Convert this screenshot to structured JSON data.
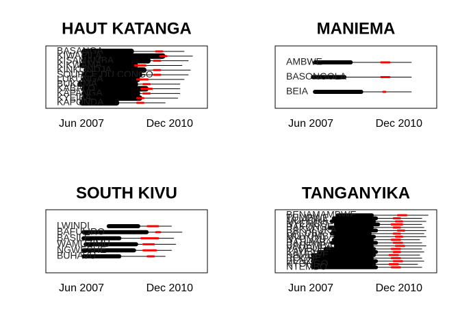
{
  "chart_data": [
    {
      "type": "range",
      "title": "HAUT KATANGA",
      "x_ticks": [
        "Jun 2007",
        "Dec 2010"
      ],
      "x_tick_values": [
        "2007-06",
        "2010-12"
      ],
      "xlim": [
        "2006-01",
        "2012-06"
      ],
      "colors": {
        "range": "#000000",
        "marker": "#ff0000",
        "whisker": "#000000"
      },
      "rows": [
        {
          "label": "BASANGA",
          "start": "2007-06",
          "end": "2009-07",
          "marker_start": "2010-05",
          "marker_end": "2010-09",
          "line_end": "2011-07"
        },
        {
          "label": "KIWAPILA",
          "start": "2007-06",
          "end": "2010-10",
          "marker_start": "2010-07",
          "marker_end": "2010-11",
          "line_end": "2011-11"
        },
        {
          "label": "KISAMAMBA",
          "start": "2007-06",
          "end": "2010-03",
          "marker_start": "2010-04",
          "marker_end": "2010-08",
          "line_end": "2011-09"
        },
        {
          "label": "KIKWAMA",
          "start": "2007-05",
          "end": "2009-09",
          "marker_start": "2009-07",
          "marker_end": "2010-01",
          "line_end": "2011-06"
        },
        {
          "label": "KINKONDJA",
          "start": "2007-07",
          "end": "2010-01",
          "marker_start": "2010-04",
          "marker_end": "2010-08",
          "line_end": "2011-10"
        },
        {
          "label": "SOURCE DU CONGO",
          "start": "2007-06",
          "end": "2009-11",
          "marker_start": "2010-04",
          "marker_end": "2010-08",
          "line_end": "2011-09"
        },
        {
          "label": "LUKUNGA",
          "start": "2007-06",
          "end": "2009-10",
          "marker_start": "2009-08",
          "marker_end": "2010-02",
          "line_end": "2011-07"
        },
        {
          "label": "BUKAMA",
          "start": "2007-04",
          "end": "2009-09",
          "marker_start": "2009-11",
          "marker_end": "2010-03",
          "line_end": "2011-05"
        },
        {
          "label": "KABALO",
          "start": "2007-06",
          "end": "2010-02",
          "marker_start": "2009-10",
          "marker_end": "2010-04",
          "line_end": "2011-05"
        },
        {
          "label": "KAPANGA",
          "start": "2007-06",
          "end": "2009-10",
          "marker_start": "2009-11",
          "marker_end": "2010-03",
          "line_end": "2011-05"
        },
        {
          "label": "KYEIBA",
          "start": "2007-06",
          "end": "2009-11",
          "marker_start": "2009-08",
          "marker_end": "2009-12",
          "line_end": "2011-04"
        },
        {
          "label": "KAPONDA",
          "start": "2007-05",
          "end": "2008-12",
          "marker_start": "2009-08",
          "marker_end": "2009-12",
          "line_end": "2010-10"
        }
      ]
    },
    {
      "type": "range",
      "title": "MANIEMA",
      "x_ticks": [
        "Jun 2007",
        "Dec 2010"
      ],
      "x_tick_values": [
        "2007-06",
        "2010-12"
      ],
      "xlim": [
        "2006-01",
        "2012-06"
      ],
      "colors": {
        "range": "#000000",
        "marker": "#ff0000",
        "whisker": "#000000"
      },
      "rows": [
        {
          "label": "AMBWE",
          "start": "2007-07",
          "end": "2009-02",
          "marker_start": "2010-03",
          "marker_end": "2010-08",
          "line_end": "2011-06"
        },
        {
          "label": "BASONGOLA",
          "start": "2007-06",
          "end": "2008-11",
          "marker_start": "2010-03",
          "marker_end": "2010-08",
          "line_end": "2011-06"
        },
        {
          "label": "BEIA",
          "start": "2007-07",
          "end": "2009-07",
          "marker_start": "2010-04",
          "marker_end": "2010-06",
          "line_end": "2011-06"
        }
      ]
    },
    {
      "type": "range",
      "title": "SOUTH KIVU",
      "x_ticks": [
        "Jun 2007",
        "Dec 2010"
      ],
      "x_tick_values": [
        "2007-06",
        "2010-12"
      ],
      "xlim": [
        "2006-01",
        "2012-06"
      ],
      "colors": {
        "range": "#000000",
        "marker": "#ff0000",
        "whisker": "#000000"
      },
      "rows": [
        {
          "label": "LWINDI",
          "start": "2008-06",
          "end": "2009-10",
          "marker_start": "2010-01",
          "marker_end": "2010-07",
          "line_end": "2011-01"
        },
        {
          "label": "BAFULIRO",
          "start": "2007-06",
          "end": "2010-02",
          "marker_start": "2010-05",
          "marker_end": "2010-08",
          "line_end": "2011-06"
        },
        {
          "label": "BASILE",
          "start": "2007-06",
          "end": "2009-01",
          "marker_start": "2009-10",
          "marker_end": "2010-07",
          "line_end": "2011-02"
        },
        {
          "label": "WAMUZIMU",
          "start": "2007-07",
          "end": "2009-09",
          "marker_start": "2009-11",
          "marker_end": "2010-05",
          "line_end": "2011-03"
        },
        {
          "label": "NGWESHE",
          "start": "2007-06",
          "end": "2009-08",
          "marker_start": "2009-11",
          "marker_end": "2010-06",
          "line_end": "2011-01"
        },
        {
          "label": "BUHAVU",
          "start": "2007-06",
          "end": "2009-01",
          "marker_start": "2010-01",
          "marker_end": "2010-05",
          "line_end": "2010-10"
        }
      ]
    },
    {
      "type": "range",
      "title": "TANGANYIKA",
      "x_ticks": [
        "Jun 2007",
        "Dec 2010"
      ],
      "x_tick_values": [
        "2007-06",
        "2010-12"
      ],
      "xlim": [
        "2006-01",
        "2012-06"
      ],
      "colors": {
        "range": "#000000",
        "marker": "#ff0000",
        "whisker": "#000000"
      },
      "rows": [
        {
          "label": "BENAMAMBWE",
          "start": "2008-06",
          "end": "2009-12",
          "marker_start": "2010-11",
          "marker_end": "2011-04",
          "line_end": "2012-02"
        },
        {
          "label": "TUMBWE",
          "start": "2008-04",
          "end": "2010-02",
          "marker_start": "2010-09",
          "marker_end": "2011-01",
          "line_end": "2011-11"
        },
        {
          "label": "MUHONA",
          "start": "2008-03",
          "end": "2010-01",
          "marker_start": "2010-10",
          "marker_end": "2011-02",
          "line_end": "2012-01"
        },
        {
          "label": "NYEMBO",
          "start": "2008-05",
          "end": "2010-03",
          "marker_start": "2010-08",
          "marker_end": "2011-02",
          "line_end": "2011-11"
        },
        {
          "label": "BAKONGE",
          "start": "2008-02",
          "end": "2009-12",
          "marker_start": "2010-09",
          "marker_end": "2011-01",
          "line_end": "2011-12"
        },
        {
          "label": "BAKALUKA",
          "start": "2008-04",
          "end": "2010-02",
          "marker_start": "2010-11",
          "marker_end": "2011-03",
          "line_end": "2012-01"
        },
        {
          "label": "BALUBA",
          "start": "2008-03",
          "end": "2009-11",
          "marker_start": "2010-09",
          "marker_end": "2011-01",
          "line_end": "2011-12"
        },
        {
          "label": "MUYUMBA",
          "start": "2008-05",
          "end": "2010-01",
          "marker_start": "2010-10",
          "marker_end": "2011-02",
          "line_end": "2012-01"
        },
        {
          "label": "NYUNZU",
          "start": "2008-04",
          "end": "2009-12",
          "marker_start": "2010-08",
          "marker_end": "2011-01",
          "line_end": "2011-10"
        },
        {
          "label": "BATUMBA",
          "start": "2008-03",
          "end": "2010-02",
          "marker_start": "2010-09",
          "marker_end": "2011-02",
          "line_end": "2011-11"
        },
        {
          "label": "BAHEMBA",
          "start": "2008-05",
          "end": "2009-12",
          "marker_start": "2010-10",
          "marker_end": "2011-03",
          "line_end": "2012-01"
        },
        {
          "label": "YAMBULA",
          "start": "2007-12",
          "end": "2010-01",
          "marker_start": "2010-08",
          "marker_end": "2011-01",
          "line_end": "2011-11"
        },
        {
          "label": "KAYEYE",
          "start": "2007-09",
          "end": "2010-02",
          "marker_start": "2010-09",
          "marker_end": "2011-01",
          "line_end": "2011-12"
        },
        {
          "label": "KAMBWE",
          "start": "2007-06",
          "end": "2010-01",
          "marker_start": "2010-07",
          "marker_end": "2010-12",
          "line_end": "2011-10"
        },
        {
          "label": "ROGHE",
          "start": "2007-06",
          "end": "2009-12",
          "marker_start": "2010-08",
          "marker_end": "2011-01",
          "line_end": "2011-11"
        },
        {
          "label": "BENZE",
          "start": "2007-06",
          "end": "2010-02",
          "marker_start": "2010-09",
          "marker_end": "2011-02",
          "line_end": "2011-12"
        },
        {
          "label": "KYONGO",
          "start": "2007-06",
          "end": "2010-01",
          "marker_start": "2010-07",
          "marker_end": "2010-12",
          "line_end": "2011-09"
        },
        {
          "label": "NTEMBO",
          "start": "2007-06",
          "end": "2010-02",
          "marker_start": "2010-08",
          "marker_end": "2011-01",
          "line_end": "2011-11"
        }
      ]
    }
  ]
}
